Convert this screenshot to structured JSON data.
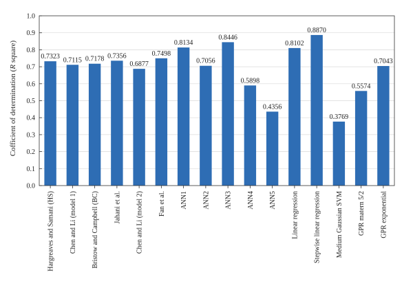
{
  "chart_data": {
    "type": "bar",
    "ylabel_parts": [
      "Cofficient of determination (",
      "R",
      " square)"
    ],
    "ylim": [
      0,
      1.0
    ],
    "yticks": [
      "0.0",
      "0.1",
      "0.2",
      "0.3",
      "0.4",
      "0.5",
      "0.6",
      "0.7",
      "0.8",
      "0.9",
      "1.0"
    ],
    "grid": true,
    "bar_color": "#2e6db4",
    "categories": [
      "Hargreaves and Samani (HS)",
      "Chen and Li (model 1)",
      "Bristow and Campbell (BC)",
      "Jahani et al.",
      "Chen and Li (model 2)",
      "Fan et al.",
      "ANN1",
      "ANN2",
      "ANN3",
      "ANN4",
      "ANN5",
      "Linear regression",
      "Stepwise linear regression",
      "Medium Gaussian SVM",
      "GPR matern 5/2",
      "GPR exponential"
    ],
    "values": [
      0.7323,
      0.7115,
      0.7178,
      0.7356,
      0.6877,
      0.7498,
      0.8134,
      0.7056,
      0.8446,
      0.5898,
      0.4356,
      0.8102,
      0.887,
      0.3769,
      0.5574,
      0.7043
    ],
    "data_labels": [
      "0.7323",
      "0.7115",
      "0.7178",
      "0.7356",
      "0.6877",
      "0.7498",
      "0.8134",
      "0.7056",
      "0.8446",
      "0.5898",
      "0.4356",
      "0.8102",
      "0.8870",
      "0.3769",
      "0.5574",
      "0.7043"
    ]
  }
}
